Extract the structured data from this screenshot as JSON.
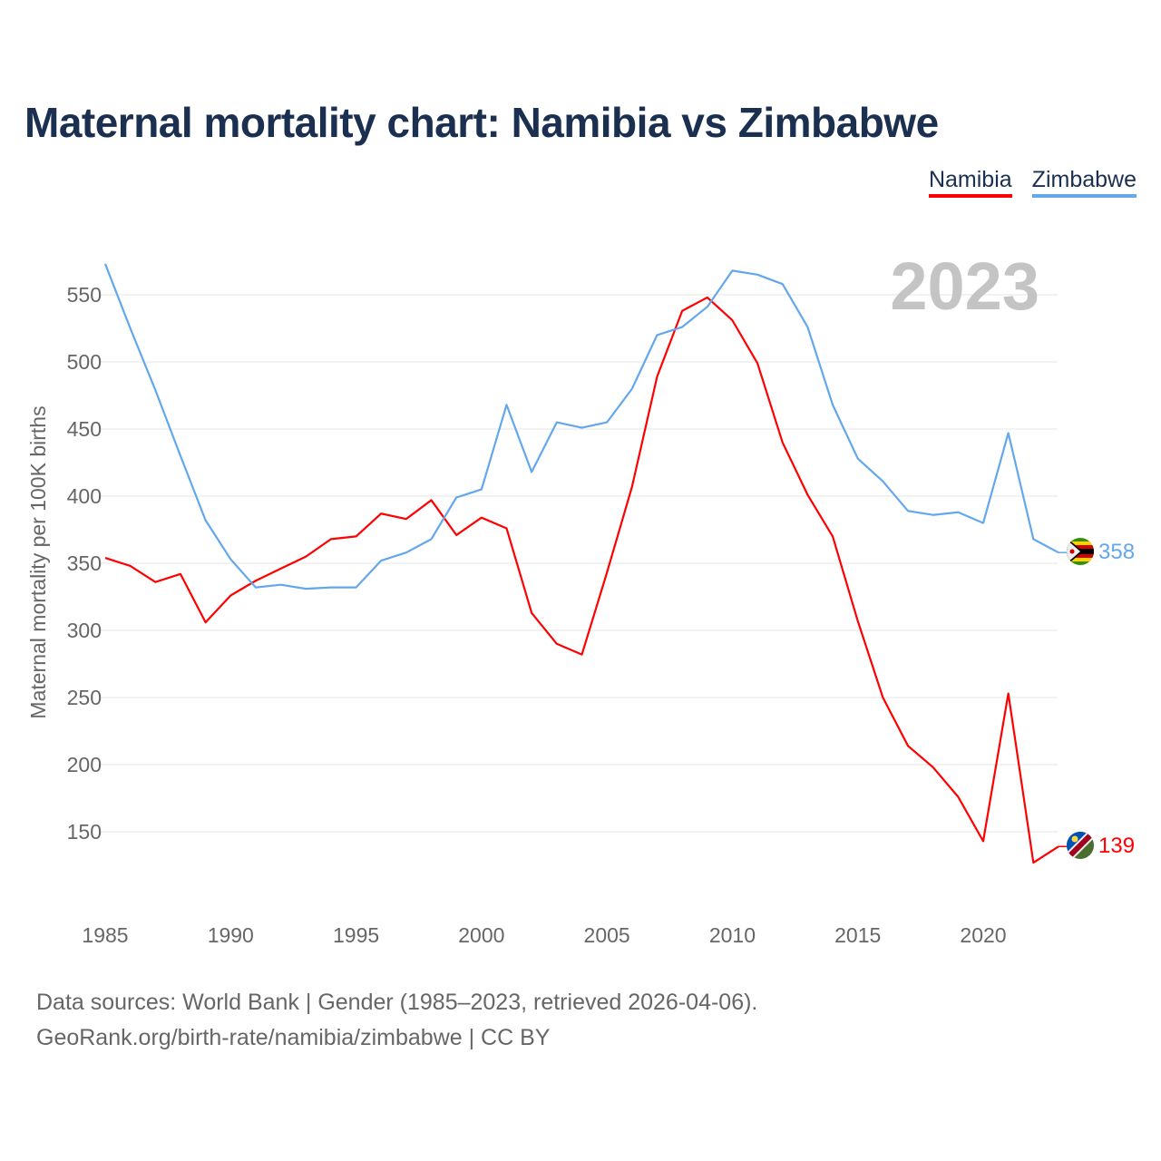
{
  "chart_data": {
    "type": "line",
    "title": "Maternal mortality chart: Namibia vs Zimbabwe",
    "ylabel": "Maternal mortality per 100K births",
    "xlabel": "",
    "year_label": "2023",
    "x": [
      1985,
      1986,
      1987,
      1988,
      1989,
      1990,
      1991,
      1992,
      1993,
      1994,
      1995,
      1996,
      1997,
      1998,
      1999,
      2000,
      2001,
      2002,
      2003,
      2004,
      2005,
      2006,
      2007,
      2008,
      2009,
      2010,
      2011,
      2012,
      2013,
      2014,
      2015,
      2016,
      2017,
      2018,
      2019,
      2020,
      2021,
      2022,
      2023
    ],
    "series": [
      {
        "name": "Namibia",
        "color": "#ff0000",
        "end_label": "139",
        "values": [
          354,
          348,
          336,
          342,
          306,
          326,
          337,
          346,
          355,
          368,
          370,
          387,
          383,
          397,
          371,
          384,
          376,
          313,
          290,
          282,
          343,
          407,
          489,
          538,
          548,
          531,
          499,
          440,
          401,
          370,
          307,
          250,
          214,
          198,
          176,
          143,
          253,
          127,
          139
        ]
      },
      {
        "name": "Zimbabwe",
        "color": "#63a7ec",
        "end_label": "358",
        "values": [
          573,
          525,
          479,
          430,
          382,
          353,
          332,
          334,
          331,
          332,
          332,
          352,
          358,
          368,
          399,
          405,
          468,
          418,
          455,
          451,
          455,
          480,
          520,
          526,
          541,
          568,
          565,
          558,
          526,
          468,
          428,
          411,
          389,
          386,
          388,
          380,
          447,
          368,
          358
        ]
      }
    ],
    "yticks": [
      "150",
      "200",
      "250",
      "300",
      "350",
      "400",
      "450",
      "500",
      "550"
    ],
    "ytick_values": [
      150,
      200,
      250,
      300,
      350,
      400,
      450,
      500,
      550
    ],
    "xticks": [
      "1985",
      "1990",
      "1995",
      "2000",
      "2005",
      "2010",
      "2015",
      "2020"
    ],
    "xtick_values": [
      1985,
      1990,
      1995,
      2000,
      2005,
      2010,
      2015,
      2020
    ],
    "xlim": [
      1985,
      2023
    ],
    "ylim": [
      110,
      580
    ],
    "grid": true,
    "legend_position": "top-right"
  },
  "footer": {
    "line1": "Data sources: World Bank | Gender (1985–2023, retrieved 2026-04-06).",
    "line2": "GeoRank.org/birth-rate/namibia/zimbabwe | CC BY"
  }
}
